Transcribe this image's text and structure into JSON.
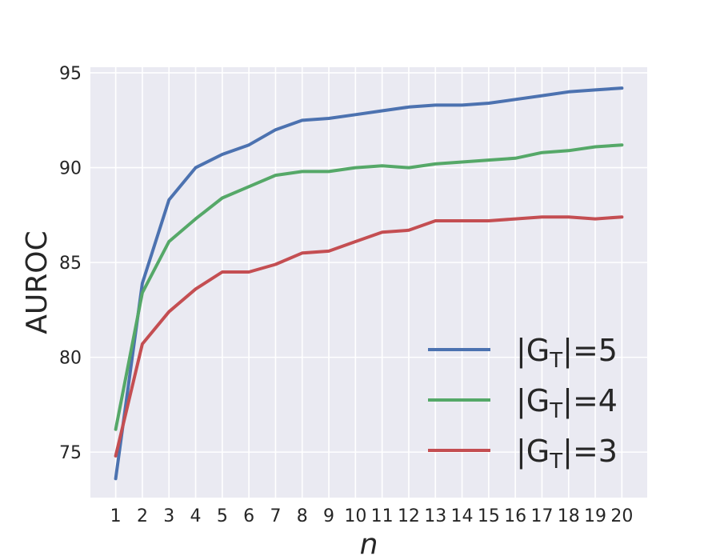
{
  "chart_data": {
    "type": "line",
    "xlabel": "n",
    "ylabel": "AUROC",
    "x": [
      1,
      2,
      3,
      4,
      5,
      6,
      7,
      8,
      9,
      10,
      11,
      12,
      13,
      14,
      15,
      16,
      17,
      18,
      19,
      20
    ],
    "xticks": [
      "1",
      "2",
      "3",
      "4",
      "5",
      "6",
      "7",
      "8",
      "9",
      "10",
      "11",
      "12",
      "13",
      "14",
      "15",
      "16",
      "17",
      "18",
      "19",
      "20"
    ],
    "yticks": [
      75,
      80,
      85,
      90,
      95
    ],
    "ylim": [
      72.6,
      95.3
    ],
    "grid": true,
    "legend_position": "lower-right",
    "series": [
      {
        "name": "|G_T|=5",
        "legend": {
          "prefix": "|G",
          "sub": "T",
          "suffix": "|=5"
        },
        "color": "#4c72b0",
        "values": [
          73.6,
          83.9,
          88.3,
          90.0,
          90.7,
          91.2,
          92.0,
          92.5,
          92.6,
          92.8,
          93.0,
          93.2,
          93.3,
          93.3,
          93.4,
          93.6,
          93.8,
          94.0,
          94.1,
          94.2
        ]
      },
      {
        "name": "|G_T|=4",
        "legend": {
          "prefix": "|G",
          "sub": "T",
          "suffix": "|=4"
        },
        "color": "#55a868",
        "values": [
          76.2,
          83.4,
          86.1,
          87.3,
          88.4,
          89.0,
          89.6,
          89.8,
          89.8,
          90.0,
          90.1,
          90.0,
          90.2,
          90.3,
          90.4,
          90.5,
          90.8,
          90.9,
          91.1,
          91.2
        ]
      },
      {
        "name": "|G_T|=3",
        "legend": {
          "prefix": "|G",
          "sub": "T",
          "suffix": "|=3"
        },
        "color": "#c44e52",
        "values": [
          74.8,
          80.7,
          82.4,
          83.6,
          84.5,
          84.5,
          84.9,
          85.5,
          85.6,
          86.1,
          86.6,
          86.7,
          87.2,
          87.2,
          87.2,
          87.3,
          87.4,
          87.4,
          87.3,
          87.4
        ]
      }
    ]
  }
}
